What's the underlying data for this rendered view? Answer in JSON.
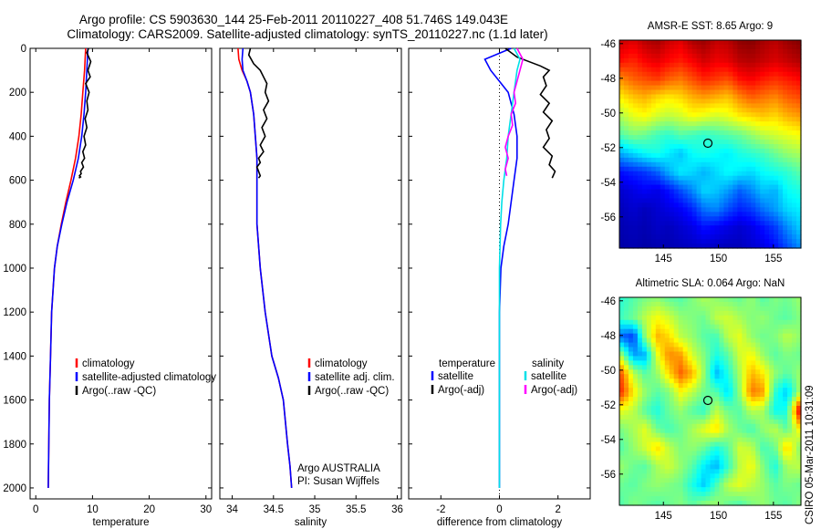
{
  "header": {
    "line1": "Argo profile: CS 5903630_144 25-Feb-2011 20110227_408 51.746S 149.043E",
    "line2": "Climatology: CARS2009. Satellite-adjusted climatology: synTS_20110227.nc (1.1d later)"
  },
  "footer": {
    "stamp": "CSIRO 05-Mar-2011 10:31:09",
    "argo_credit": "Argo AUSTRALIA",
    "pi_credit": "PI: Susan Wijffels"
  },
  "colors": {
    "climatology": "#ff0000",
    "satellite": "#0000ff",
    "argo": "#000000",
    "sat_salinity": "#00e0e8",
    "argo_salinity": "#ff00ff",
    "marker": "#000000"
  },
  "legends": {
    "temperature": [
      "climatology",
      "satellite-adjusted climatology",
      "Argo(..raw -QC)"
    ],
    "salinity": [
      "climatology",
      "satellite adj. clim.",
      "Argo(..raw -QC)"
    ],
    "difference_temp_title": "temperature",
    "difference_sal_title": "salinity",
    "difference_temp": [
      "satellite",
      "Argo(-adj)"
    ],
    "difference_sal": [
      "satellite",
      "Argo(-adj)"
    ]
  },
  "chart_data": [
    {
      "type": "line",
      "xlabel": "temperature",
      "ylabel": "",
      "xlim": [
        -1,
        31
      ],
      "ylim": [
        2050,
        0
      ],
      "xticks": [
        0,
        10,
        20,
        30
      ],
      "yticks": [
        0,
        200,
        400,
        600,
        800,
        1000,
        1200,
        1400,
        1600,
        1800,
        2000
      ],
      "series": [
        {
          "name": "climatology",
          "x": [
            8.8,
            8.6,
            8.3,
            8.0,
            7.6,
            7.0,
            6.2,
            5.3,
            4.5,
            3.8,
            3.3,
            2.8,
            2.6,
            2.4,
            2.3,
            2.2
          ],
          "y": [
            0,
            100,
            200,
            300,
            400,
            500,
            600,
            700,
            800,
            900,
            1000,
            1200,
            1400,
            1600,
            1800,
            2000
          ]
        },
        {
          "name": "satellite-adjusted climatology",
          "x": [
            9.2,
            9.0,
            8.8,
            8.5,
            8.1,
            7.5,
            6.6,
            5.5,
            4.6,
            3.8,
            3.3,
            2.8,
            2.6,
            2.4,
            2.3,
            2.2
          ],
          "y": [
            0,
            100,
            200,
            300,
            400,
            500,
            600,
            700,
            800,
            900,
            1000,
            1200,
            1400,
            1600,
            1800,
            2000
          ]
        },
        {
          "name": "Argo(..raw -QC)",
          "x": [
            9.3,
            9.0,
            9.7,
            9.2,
            9.6,
            8.8,
            9.4,
            9.0,
            9.2,
            8.7,
            9.0,
            8.5,
            8.8,
            8.3,
            8.6,
            8.1,
            8.4,
            7.9,
            8.0,
            7.7,
            7.9,
            7.6
          ],
          "y": [
            0,
            20,
            60,
            100,
            130,
            160,
            200,
            240,
            280,
            320,
            360,
            400,
            440,
            470,
            500,
            520,
            540,
            560,
            570,
            580,
            585,
            590
          ]
        }
      ]
    },
    {
      "type": "line",
      "xlabel": "salinity",
      "ylabel": "",
      "xlim": [
        33.85,
        36.05
      ],
      "ylim": [
        2050,
        0
      ],
      "xticks": [
        34,
        34.5,
        35,
        35.5,
        36
      ],
      "yticks": [
        0,
        200,
        400,
        600,
        800,
        1000,
        1200,
        1400,
        1600,
        1800,
        2000
      ],
      "series": [
        {
          "name": "climatology",
          "x": [
            34.07,
            34.08,
            34.12,
            34.18,
            34.22,
            34.26,
            34.28,
            34.3,
            34.3,
            34.3,
            34.34,
            34.4,
            34.48,
            34.56,
            34.62,
            34.67,
            34.7,
            34.72
          ],
          "y": [
            0,
            50,
            100,
            150,
            200,
            300,
            400,
            500,
            600,
            800,
            1000,
            1200,
            1400,
            1500,
            1600,
            1800,
            1900,
            2000
          ]
        },
        {
          "name": "satellite adj. clim.",
          "x": [
            34.13,
            34.12,
            34.13,
            34.18,
            34.22,
            34.26,
            34.28,
            34.3,
            34.3,
            34.3,
            34.34,
            34.4,
            34.48,
            34.56,
            34.62,
            34.67,
            34.7,
            34.72
          ],
          "y": [
            0,
            50,
            100,
            150,
            200,
            300,
            400,
            500,
            600,
            800,
            1000,
            1200,
            1400,
            1500,
            1600,
            1800,
            1900,
            2000
          ]
        },
        {
          "name": "Argo(..raw -QC)",
          "x": [
            34.22,
            34.2,
            34.26,
            34.34,
            34.38,
            34.42,
            34.4,
            34.44,
            34.38,
            34.42,
            34.36,
            34.4,
            34.34,
            34.38,
            34.32,
            34.34,
            34.3,
            34.32,
            34.34,
            34.32
          ],
          "y": [
            0,
            30,
            70,
            100,
            130,
            160,
            200,
            240,
            280,
            320,
            360,
            400,
            440,
            470,
            500,
            520,
            540,
            560,
            580,
            590
          ]
        }
      ]
    },
    {
      "type": "line",
      "xlabel": "difference from climatology",
      "ylabel": "",
      "xlim": [
        -3.1,
        3.1
      ],
      "ylim": [
        2050,
        0
      ],
      "xticks": [
        -2,
        0,
        2
      ],
      "yticks": [
        0,
        200,
        400,
        600,
        800,
        1000,
        1200,
        1400,
        1600,
        1800,
        2000
      ],
      "series": [
        {
          "name": "temperature satellite",
          "x": [
            0.4,
            -0.5,
            -0.3,
            0.0,
            0.3,
            0.5,
            0.6,
            0.6,
            0.5,
            0.4,
            0.3,
            0.15,
            0.05,
            0.0,
            0.0,
            0.0
          ],
          "y": [
            0,
            50,
            100,
            150,
            200,
            300,
            400,
            500,
            600,
            700,
            800,
            900,
            1000,
            1200,
            1500,
            2000
          ]
        },
        {
          "name": "temperature Argo(-adj)",
          "x": [
            0.2,
            0.6,
            1.4,
            1.7,
            1.5,
            1.6,
            1.4,
            1.7,
            1.5,
            1.8,
            1.6,
            1.7,
            1.5,
            1.8,
            1.7,
            1.9,
            1.8
          ],
          "y": [
            0,
            40,
            80,
            100,
            130,
            170,
            210,
            250,
            290,
            330,
            370,
            410,
            450,
            490,
            530,
            560,
            590
          ]
        },
        {
          "name": "salinity satellite",
          "x": [
            0.5,
            0.7,
            0.6,
            0.5,
            0.4,
            0.3,
            0.25,
            0.15,
            0.08,
            0.04,
            0.0,
            0.0,
            0.0
          ],
          "y": [
            0,
            50,
            100,
            200,
            300,
            400,
            500,
            600,
            700,
            800,
            1000,
            1500,
            2000
          ]
        },
        {
          "name": "salinity Argo(-adj)",
          "x": [
            0.6,
            0.8,
            0.7,
            0.6,
            0.5,
            0.55,
            0.4,
            0.45,
            0.3,
            0.2,
            0.3,
            0.2,
            0.25
          ],
          "y": [
            0,
            50,
            100,
            150,
            200,
            250,
            300,
            350,
            400,
            450,
            500,
            550,
            580
          ]
        }
      ]
    },
    {
      "type": "heatmap",
      "title": "AMSR-E SST: 8.65 Argo: 9",
      "xlim": [
        141,
        157.5
      ],
      "ylim": [
        -57.8,
        -45.8
      ],
      "xticks": [
        145,
        150,
        155
      ],
      "yticks": [
        -46,
        -48,
        -50,
        -52,
        -54,
        -56
      ],
      "marker": {
        "lon": 149.043,
        "lat": -51.746
      },
      "colormap": "jet",
      "rows": [
        [
          0.92,
          0.9,
          0.94,
          0.96,
          0.92,
          0.9,
          0.95,
          0.97,
          0.93,
          0.94,
          0.98,
          0.99,
          0.96,
          0.94,
          0.97,
          0.99
        ],
        [
          0.86,
          0.84,
          0.88,
          0.9,
          0.87,
          0.85,
          0.88,
          0.92,
          0.89,
          0.9,
          0.94,
          0.95,
          0.93,
          0.91,
          0.93,
          0.95
        ],
        [
          0.74,
          0.78,
          0.8,
          0.82,
          0.78,
          0.76,
          0.8,
          0.84,
          0.82,
          0.8,
          0.86,
          0.88,
          0.85,
          0.83,
          0.85,
          0.87
        ],
        [
          0.64,
          0.68,
          0.7,
          0.66,
          0.64,
          0.66,
          0.7,
          0.72,
          0.7,
          0.68,
          0.74,
          0.78,
          0.76,
          0.74,
          0.78,
          0.8
        ],
        [
          0.55,
          0.6,
          0.62,
          0.58,
          0.56,
          0.58,
          0.62,
          0.6,
          0.58,
          0.6,
          0.64,
          0.66,
          0.68,
          0.66,
          0.7,
          0.72
        ],
        [
          0.46,
          0.5,
          0.48,
          0.44,
          0.42,
          0.46,
          0.44,
          0.42,
          0.44,
          0.46,
          0.48,
          0.52,
          0.56,
          0.58,
          0.6,
          0.62
        ],
        [
          0.3,
          0.34,
          0.38,
          0.4,
          0.36,
          0.32,
          0.38,
          0.4,
          0.38,
          0.36,
          0.4,
          0.42,
          0.44,
          0.48,
          0.52,
          0.54
        ],
        [
          0.14,
          0.16,
          0.18,
          0.22,
          0.3,
          0.36,
          0.34,
          0.3,
          0.34,
          0.38,
          0.36,
          0.34,
          0.38,
          0.4,
          0.42,
          0.46
        ],
        [
          0.08,
          0.1,
          0.12,
          0.1,
          0.14,
          0.2,
          0.26,
          0.34,
          0.32,
          0.28,
          0.22,
          0.26,
          0.32,
          0.3,
          0.38,
          0.4
        ],
        [
          0.06,
          0.08,
          0.06,
          0.08,
          0.1,
          0.12,
          0.16,
          0.24,
          0.26,
          0.2,
          0.16,
          0.18,
          0.24,
          0.28,
          0.34,
          0.36
        ],
        [
          0.05,
          0.06,
          0.05,
          0.07,
          0.06,
          0.08,
          0.1,
          0.14,
          0.12,
          0.1,
          0.08,
          0.1,
          0.14,
          0.18,
          0.26,
          0.32
        ],
        [
          0.04,
          0.05,
          0.04,
          0.05,
          0.05,
          0.06,
          0.07,
          0.08,
          0.07,
          0.06,
          0.06,
          0.08,
          0.1,
          0.14,
          0.2,
          0.26
        ]
      ]
    },
    {
      "type": "heatmap",
      "title": "Altimetric SLA: 0.064 Argo: NaN",
      "xlim": [
        141,
        157.5
      ],
      "ylim": [
        -57.8,
        -45.8
      ],
      "xticks": [
        145,
        150,
        155
      ],
      "yticks": [
        -46,
        -48,
        -50,
        -52,
        -54,
        -56
      ],
      "marker": {
        "lon": 149.043,
        "lat": -51.746
      },
      "colormap": "jet",
      "rows": [
        [
          0.42,
          0.46,
          0.5,
          0.52,
          0.48,
          0.46,
          0.5,
          0.54,
          0.52,
          0.5,
          0.48,
          0.52,
          0.46,
          0.5,
          0.48,
          0.52
        ],
        [
          0.44,
          0.48,
          0.56,
          0.62,
          0.58,
          0.52,
          0.5,
          0.48,
          0.56,
          0.58,
          0.54,
          0.5,
          0.52,
          0.48,
          0.46,
          0.5
        ],
        [
          0.22,
          0.18,
          0.52,
          0.7,
          0.66,
          0.56,
          0.52,
          0.46,
          0.44,
          0.56,
          0.6,
          0.52,
          0.48,
          0.5,
          0.56,
          0.52
        ],
        [
          0.52,
          0.28,
          0.3,
          0.6,
          0.74,
          0.72,
          0.58,
          0.5,
          0.4,
          0.46,
          0.58,
          0.62,
          0.52,
          0.46,
          0.5,
          0.48
        ],
        [
          0.78,
          0.56,
          0.46,
          0.52,
          0.66,
          0.78,
          0.7,
          0.52,
          0.3,
          0.4,
          0.54,
          0.7,
          0.64,
          0.52,
          0.46,
          0.52
        ],
        [
          0.82,
          0.64,
          0.52,
          0.46,
          0.5,
          0.62,
          0.56,
          0.48,
          0.46,
          0.34,
          0.52,
          0.76,
          0.72,
          0.42,
          0.32,
          0.52
        ],
        [
          0.6,
          0.56,
          0.46,
          0.4,
          0.48,
          0.52,
          0.46,
          0.42,
          0.56,
          0.48,
          0.46,
          0.56,
          0.54,
          0.38,
          0.4,
          0.86
        ],
        [
          0.5,
          0.54,
          0.6,
          0.48,
          0.44,
          0.48,
          0.54,
          0.6,
          0.66,
          0.54,
          0.48,
          0.44,
          0.52,
          0.56,
          0.46,
          0.62
        ],
        [
          0.46,
          0.52,
          0.58,
          0.66,
          0.56,
          0.5,
          0.52,
          0.48,
          0.4,
          0.46,
          0.58,
          0.56,
          0.44,
          0.48,
          0.68,
          0.52
        ],
        [
          0.52,
          0.48,
          0.46,
          0.54,
          0.58,
          0.52,
          0.46,
          0.36,
          0.3,
          0.42,
          0.56,
          0.62,
          0.5,
          0.4,
          0.54,
          0.56
        ],
        [
          0.48,
          0.46,
          0.5,
          0.52,
          0.5,
          0.48,
          0.4,
          0.32,
          0.44,
          0.56,
          0.6,
          0.56,
          0.52,
          0.46,
          0.5,
          0.48
        ],
        [
          0.46,
          0.5,
          0.48,
          0.46,
          0.48,
          0.5,
          0.46,
          0.5,
          0.52,
          0.48,
          0.46,
          0.5,
          0.52,
          0.48,
          0.46,
          0.5
        ]
      ]
    }
  ]
}
